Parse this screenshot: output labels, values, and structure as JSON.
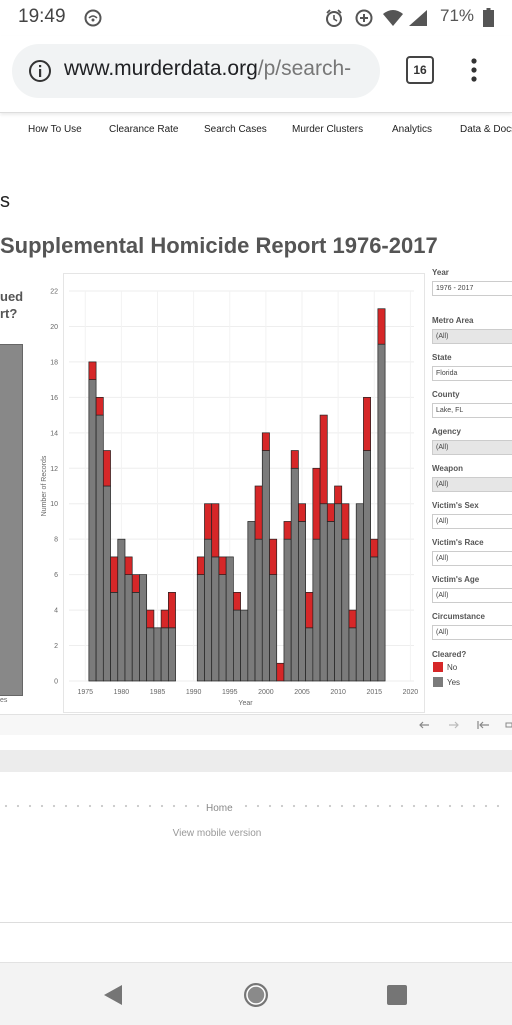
{
  "status": {
    "time": "19:49",
    "battery": "71%"
  },
  "browser": {
    "url_host": "www.murderdata.org",
    "url_path": "/p/search-",
    "tab_count": "16"
  },
  "nav": {
    "items": [
      "How To Use",
      "Clearance Rate",
      "Search Cases",
      "Murder Clusters",
      "Analytics",
      "Data & Docs"
    ]
  },
  "page": {
    "heading_fragment": "s",
    "report_title": "Supplemental Homicide Report 1976-2017",
    "left_title_line1": "ued",
    "left_title_line2": "rt?",
    "left_axis_label": "es"
  },
  "chart_data": {
    "type": "bar",
    "stacked": true,
    "xlabel": "Year",
    "ylabel": "Number of Records",
    "ylim": [
      0,
      22
    ],
    "yticks": [
      0,
      2,
      4,
      6,
      8,
      10,
      12,
      14,
      16,
      18,
      20,
      22
    ],
    "xticks": [
      1975,
      1980,
      1985,
      1990,
      1995,
      2000,
      2005,
      2010,
      2015,
      2020
    ],
    "grid": true,
    "legend": {
      "title": "Cleared?",
      "position": "right"
    },
    "colors": {
      "Yes": "#7b7b7b",
      "No": "#d62728"
    },
    "years": [
      1976,
      1977,
      1978,
      1979,
      1980,
      1981,
      1982,
      1983,
      1984,
      1985,
      1986,
      1987,
      1991,
      1992,
      1993,
      1994,
      1995,
      1996,
      1997,
      1998,
      1999,
      2000,
      2001,
      2002,
      2003,
      2004,
      2005,
      2006,
      2007,
      2008,
      2009,
      2010,
      2011,
      2012,
      2013,
      2014,
      2015,
      2016,
      2017
    ],
    "series": [
      {
        "name": "Yes",
        "values": [
          17,
          15,
          11,
          5,
          8,
          6,
          5,
          6,
          3,
          3,
          3,
          3,
          6,
          8,
          7,
          6,
          7,
          4,
          4,
          9,
          8,
          13,
          6,
          0,
          8,
          12,
          9,
          3,
          8,
          10,
          9,
          10,
          8,
          3,
          10,
          13,
          7,
          19,
          0
        ]
      },
      {
        "name": "No",
        "values": [
          1,
          1,
          2,
          2,
          0,
          1,
          1,
          0,
          1,
          0,
          1,
          2,
          1,
          2,
          3,
          1,
          0,
          1,
          0,
          0,
          3,
          1,
          2,
          1,
          1,
          1,
          1,
          2,
          4,
          5,
          1,
          1,
          2,
          1,
          0,
          3,
          1,
          2,
          0
        ]
      }
    ]
  },
  "filters": [
    {
      "label": "Year",
      "value": "1976 - 2017",
      "greyed": false
    },
    {
      "label": "Metro Area",
      "value": "(All)",
      "greyed": true
    },
    {
      "label": "State",
      "value": "Florida",
      "greyed": false
    },
    {
      "label": "County",
      "value": "Lake, FL",
      "greyed": false
    },
    {
      "label": "Agency",
      "value": "(All)",
      "greyed": true
    },
    {
      "label": "Weapon",
      "value": "(All)",
      "greyed": true
    },
    {
      "label": "Victim's Sex",
      "value": "(All)",
      "greyed": false
    },
    {
      "label": "Victim's Race",
      "value": "(All)",
      "greyed": false
    },
    {
      "label": "Victim's Age",
      "value": "(All)",
      "greyed": false
    },
    {
      "label": "Circumstance",
      "value": "(All)",
      "greyed": false
    }
  ],
  "legend": {
    "title": "Cleared?",
    "no": "No",
    "yes": "Yes"
  },
  "toolbar_icons": [
    "undo-icon",
    "redo-icon",
    "revert-icon"
  ],
  "footer": {
    "home": "Home",
    "mobile_link": "View mobile version"
  }
}
